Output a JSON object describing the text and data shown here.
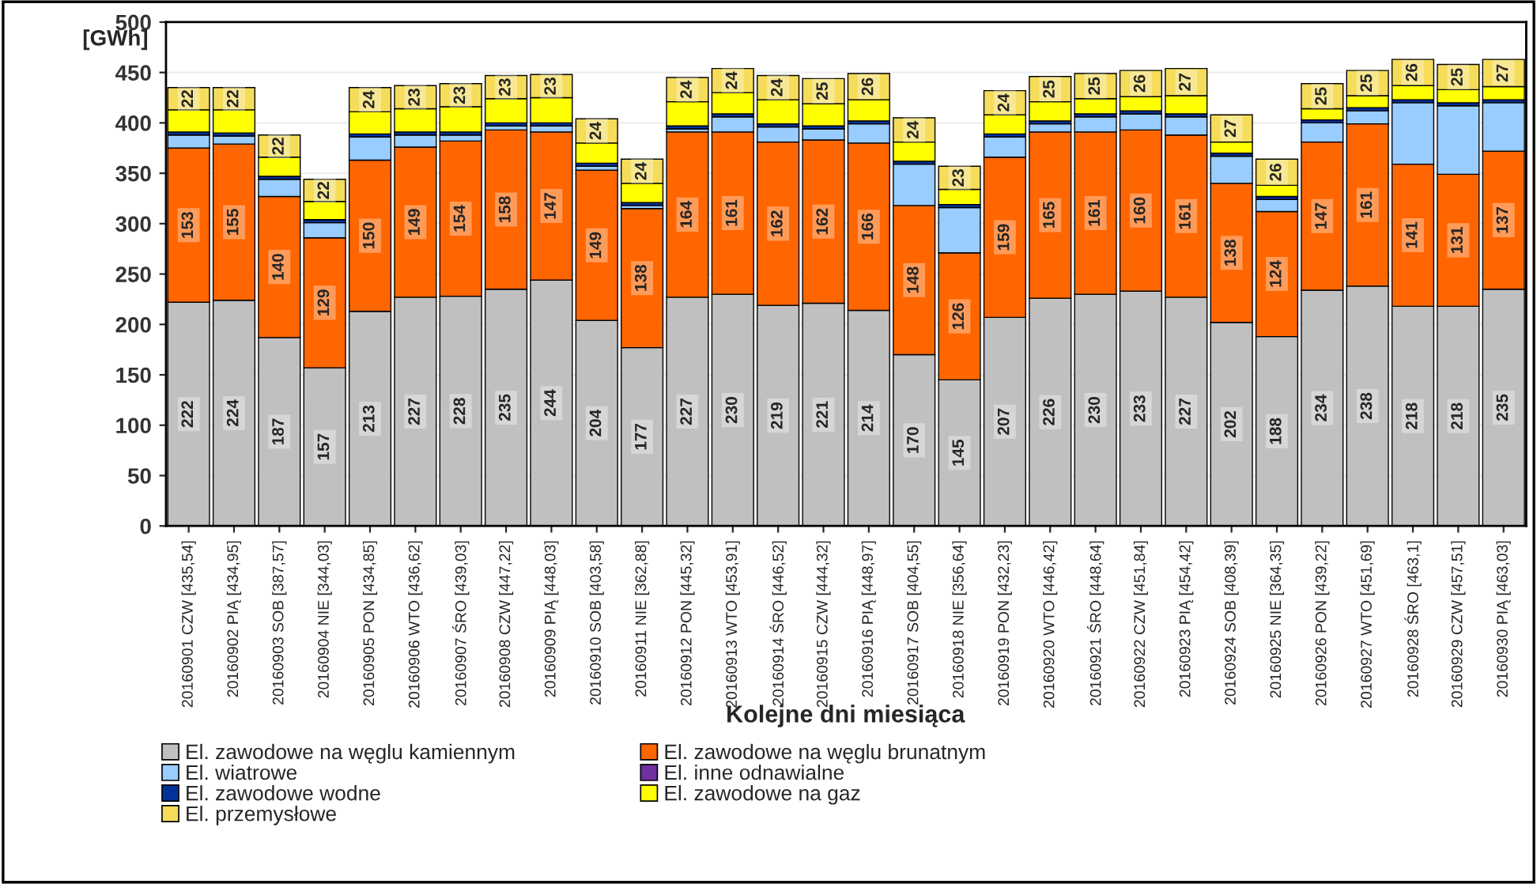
{
  "chart_data": {
    "type": "bar",
    "stacked": true,
    "xlabel": "Kolejne dni miesiąca",
    "ylabel": "[GWh]",
    "categories": [
      "20160901 CZW [435,54]",
      "20160902 PIĄ [434,95]",
      "20160903 SOB [387,57]",
      "20160904 NIE [344,03]",
      "20160905 PON [434,85]",
      "20160906 WTO [436,62]",
      "20160907 ŚRO [439,03]",
      "20160908 CZW [447,22]",
      "20160909 PIĄ [448,03]",
      "20160910 SOB [403,58]",
      "20160911 NIE [362,88]",
      "20160912 PON [445,32]",
      "20160913 WTO [453,91]",
      "20160914 ŚRO [446,52]",
      "20160915 CZW [444,32]",
      "20160916 PIĄ [448,97]",
      "20160917 SOB [404,55]",
      "20160918 NIE [356,64]",
      "20160919 PON [432,23]",
      "20160920 WTO [446,42]",
      "20160921 ŚRO [448,64]",
      "20160922 CZW [451,84]",
      "20160923 PIĄ [454,42]",
      "20160924 SOB [408,39]",
      "20160925 NIE [364,35]",
      "20160926 PON [439,22]",
      "20160927 WTO [451,69]",
      "20160928 ŚRO [463,1]",
      "20160929 CZW [457,51]",
      "20160930 PIĄ [463,03]"
    ],
    "series": [
      {
        "name": "El. zawodowe na węglu kamiennym",
        "color": "#c0c0c0",
        "values": [
          222,
          224,
          187,
          157,
          213,
          227,
          228,
          235,
          244,
          204,
          177,
          227,
          230,
          219,
          221,
          214,
          170,
          145,
          207,
          226,
          230,
          233,
          227,
          202,
          188,
          234,
          238,
          218,
          218,
          235
        ],
        "value_labels": [
          "222",
          "224",
          "187",
          "157",
          "213",
          "227",
          "228",
          "235",
          "244",
          "204",
          "177",
          "227",
          "230",
          "219",
          "221",
          "214",
          "170",
          "145",
          "207",
          "226",
          "230",
          "233",
          "227",
          "202",
          "188",
          "234",
          "238",
          "218",
          "218",
          "235"
        ]
      },
      {
        "name": "El. zawodowe na węglu brunatnym",
        "color": "#ff6600",
        "values": [
          153,
          155,
          140,
          129,
          150,
          149,
          154,
          158,
          147,
          149,
          138,
          164,
          161,
          162,
          162,
          166,
          148,
          126,
          159,
          165,
          161,
          160,
          161,
          138,
          124,
          147,
          161,
          141,
          131,
          137
        ],
        "value_labels": [
          "153",
          "155",
          "140",
          "129",
          "150",
          "149",
          "154",
          "158",
          "147",
          "149",
          "138",
          "164",
          "161",
          "162",
          "162",
          "166",
          "148",
          "126",
          "159",
          "165",
          "161",
          "160",
          "161",
          "138",
          "124",
          "147",
          "161",
          "141",
          "131",
          "137"
        ]
      },
      {
        "name": "El. wiatrowe",
        "color": "#99ccff",
        "values": [
          13,
          8,
          17,
          15,
          23,
          12,
          6,
          4,
          6,
          4,
          3,
          3,
          15,
          15,
          11,
          19,
          41,
          45,
          20,
          8,
          15,
          16,
          18,
          27,
          12,
          19,
          13,
          61,
          68,
          48
        ]
      },
      {
        "name": "El. inne odnawialne",
        "color": "#7030a0",
        "values": [
          null,
          null,
          null,
          null,
          null,
          null,
          null,
          null,
          null,
          null,
          null,
          null,
          null,
          null,
          null,
          null,
          null,
          null,
          null,
          null,
          null,
          null,
          null,
          null,
          null,
          null,
          null,
          null,
          null,
          null
        ]
      },
      {
        "name": "El. zawodowe wodne",
        "color": "#003399",
        "values": [
          3,
          3,
          3,
          3,
          3,
          3,
          3,
          3,
          3,
          3,
          3,
          3,
          3,
          3,
          3,
          3,
          3,
          3,
          3,
          3,
          3,
          3,
          3,
          3,
          3,
          3,
          3,
          3,
          3,
          3
        ]
      },
      {
        "name": "El. zawodowe na gaz",
        "color": "#ffff00",
        "values": [
          22,
          23,
          19,
          18,
          22,
          23,
          25,
          24,
          25,
          20,
          19,
          24,
          21,
          24,
          22,
          21,
          19,
          15,
          19,
          19,
          15,
          14,
          18,
          11,
          11,
          11,
          12,
          14,
          13,
          13
        ]
      },
      {
        "name": "El. przemysłowe",
        "color": "#f5dc5a",
        "values": [
          22,
          22,
          22,
          22,
          24,
          23,
          23,
          23,
          23,
          24,
          24,
          24,
          24,
          24,
          25,
          26,
          24,
          23,
          24,
          25,
          25,
          26,
          27,
          27,
          26,
          25,
          25,
          26,
          25,
          27
        ],
        "value_labels": [
          "22",
          "22",
          "22",
          "22",
          "24",
          "23",
          "23",
          "23",
          "23",
          "24",
          "24",
          "24",
          "24",
          "24",
          "25",
          "26",
          "24",
          "23",
          "24",
          "25",
          "25",
          "26",
          "27",
          "27",
          "26",
          "25",
          "25",
          "26",
          "25",
          "27"
        ]
      }
    ],
    "ylim": [
      0,
      500
    ],
    "yticks": [
      0,
      50,
      100,
      150,
      200,
      250,
      300,
      350,
      400,
      450,
      500
    ],
    "grid": "y",
    "legend": "bottom"
  }
}
